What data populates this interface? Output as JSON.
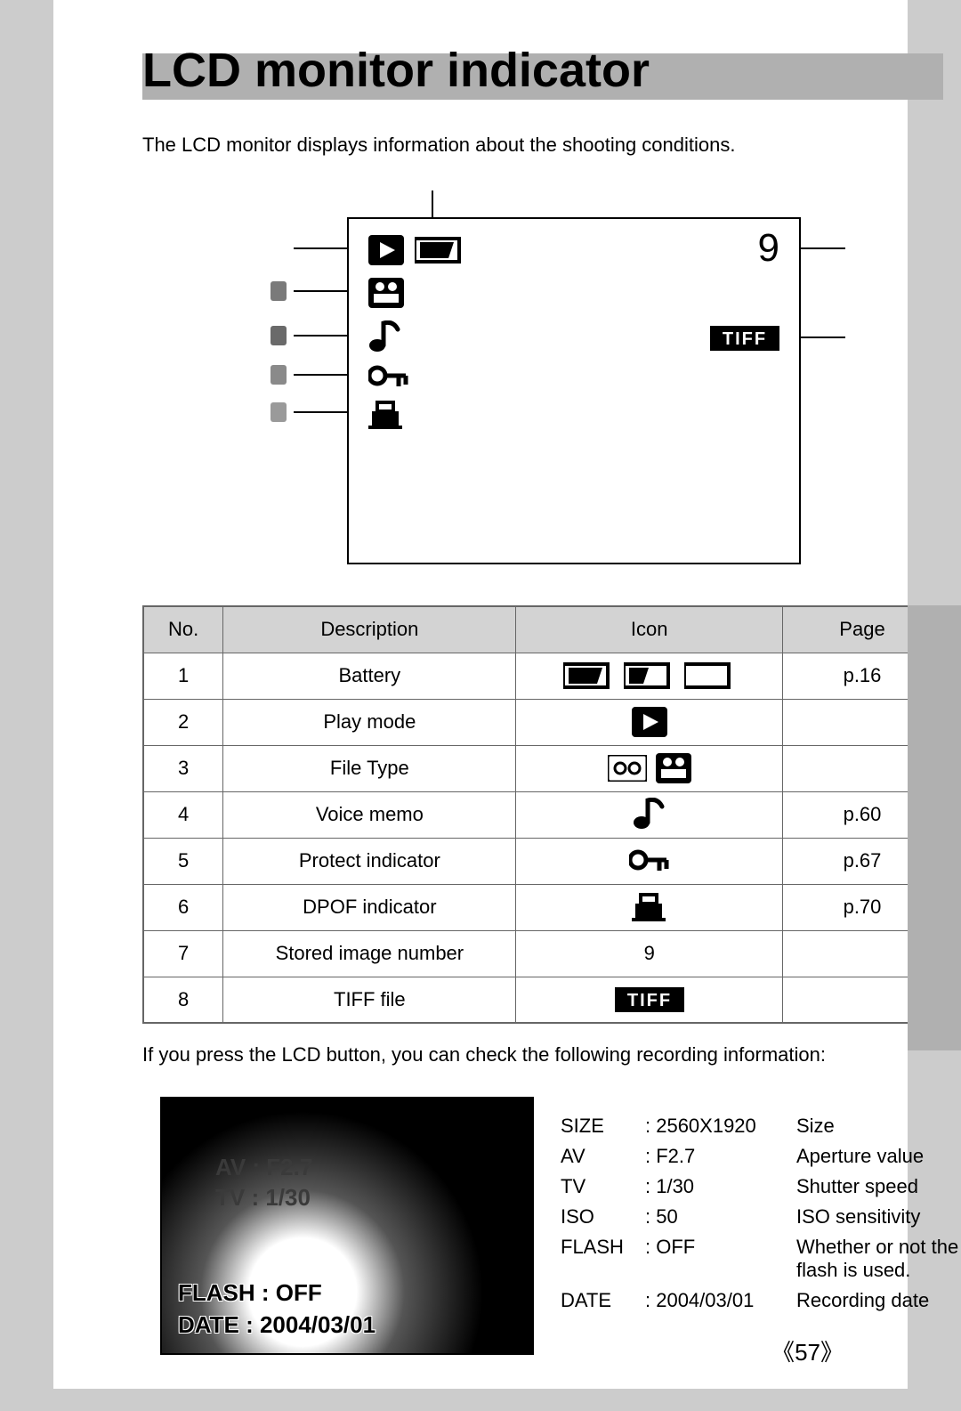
{
  "title": "LCD monitor indicator",
  "intro": "The LCD monitor displays information about the shooting conditions.",
  "lcd": {
    "stored_number": "9",
    "tiff_badge": "TIFF"
  },
  "table": {
    "headers": {
      "no": "No.",
      "desc": "Description",
      "icon": "Icon",
      "page": "Page"
    },
    "rows": [
      {
        "no": "1",
        "desc": "Battery",
        "icon": "battery",
        "page": "p.16"
      },
      {
        "no": "2",
        "desc": "Play mode",
        "icon": "play",
        "page": ""
      },
      {
        "no": "3",
        "desc": "File Type",
        "icon": "filetype",
        "page": ""
      },
      {
        "no": "4",
        "desc": "Voice memo",
        "icon": "note",
        "page": "p.60"
      },
      {
        "no": "5",
        "desc": "Protect indicator",
        "icon": "key",
        "page": "p.67"
      },
      {
        "no": "6",
        "desc": "DPOF indicator",
        "icon": "dpof",
        "page": "p.70"
      },
      {
        "no": "7",
        "desc": "Stored image number",
        "icon": "text9",
        "page": ""
      },
      {
        "no": "8",
        "desc": "TIFF file",
        "icon": "tiff",
        "page": ""
      }
    ],
    "text_icons": {
      "text9": "9",
      "tiff": "TIFF"
    }
  },
  "after_table": "If you press the LCD button, you can check the following recording information:",
  "info_overlay_dark": {
    "av": "AV   : F2.7",
    "tv": "TV   : 1/30"
  },
  "info_overlay": {
    "flash": "FLASH : OFF",
    "date": "DATE  : 2004/03/01"
  },
  "specs": [
    {
      "k": "SIZE",
      "v": ": 2560X1920",
      "d": "Size"
    },
    {
      "k": "AV",
      "v": ": F2.7",
      "d": "Aperture value"
    },
    {
      "k": "TV",
      "v": ": 1/30",
      "d": "Shutter speed"
    },
    {
      "k": "ISO",
      "v": ": 50",
      "d": "ISO sensitivity"
    },
    {
      "k": "FLASH",
      "v": ": OFF",
      "d": "Whether or not the flash is used."
    },
    {
      "k": "DATE",
      "v": ": 2004/03/01",
      "d": "Recording date"
    }
  ],
  "page_number": "57",
  "colors": {
    "black": "#000000",
    "grey_bg": "#cccccc",
    "header_grey": "#d3d3d3",
    "tab_grey": "#b0b0b0"
  }
}
